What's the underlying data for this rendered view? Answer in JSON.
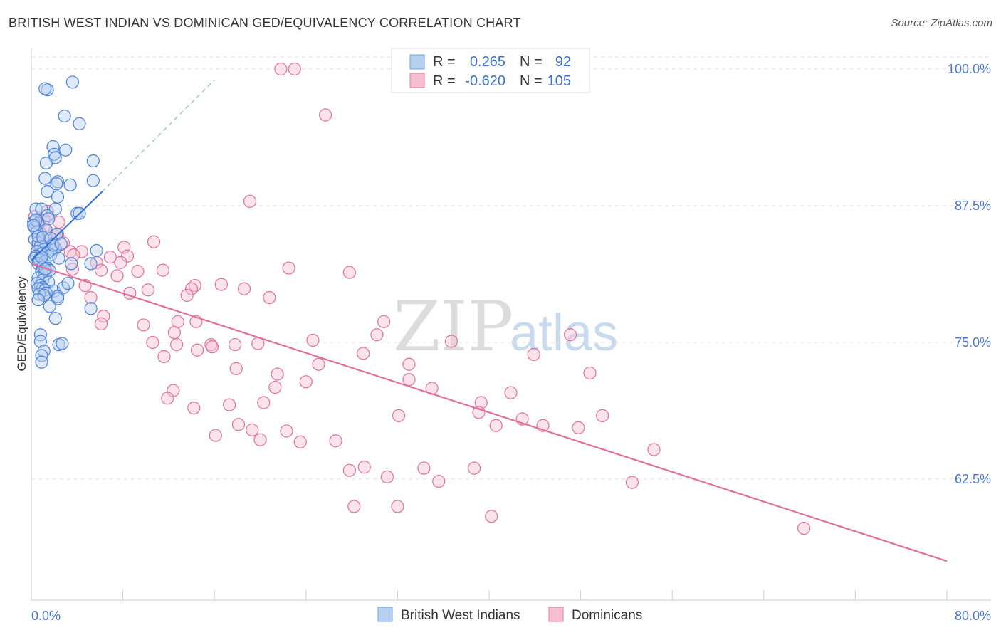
{
  "title": "BRITISH WEST INDIAN VS DOMINICAN GED/EQUIVALENCY CORRELATION CHART",
  "source": "Source: ZipAtlas.com",
  "watermark": {
    "zip": "ZIP",
    "atlas": "atlas"
  },
  "legend": {
    "r_label": "R =",
    "n_label": "N =",
    "series": [
      {
        "name": "British West Indians",
        "r": "0.265",
        "n": "92",
        "color": "#6fa3e0",
        "fill": "#b8d0f0"
      },
      {
        "name": "Dominicans",
        "r": "-0.620",
        "n": "105",
        "color": "#e879a0",
        "fill": "#f6c0d2"
      }
    ]
  },
  "chart_data": {
    "type": "scatter",
    "title": "BRITISH WEST INDIAN VS DOMINICAN GED/EQUIVALENCY CORRELATION CHART",
    "xlabel": "",
    "ylabel": "GED/Equivalency",
    "xlim": [
      0,
      80
    ],
    "ylim": [
      50,
      100
    ],
    "x_tick_labels": [
      "0.0%",
      "80.0%"
    ],
    "y_ticks": [
      62.5,
      75.0,
      87.5,
      100.0
    ],
    "y_tick_labels": [
      "62.5%",
      "75.0%",
      "87.5%",
      "100.0%"
    ],
    "grid": "horizontal dashed",
    "legend_position": "top-center",
    "series": [
      {
        "name": "British West Indians",
        "color": "#4a80d8",
        "trend": {
          "x": [
            0,
            6.2
          ],
          "y": [
            82.5,
            88.8
          ],
          "extended_to": [
            16,
            99
          ]
        },
        "points": [
          [
            1.4,
            98.1
          ],
          [
            1.2,
            98.2
          ],
          [
            3.6,
            98.8
          ],
          [
            2.9,
            95.7
          ],
          [
            4.2,
            95.0
          ],
          [
            1.9,
            92.9
          ],
          [
            3.0,
            92.6
          ],
          [
            2.0,
            92.2
          ],
          [
            2.1,
            91.9
          ],
          [
            1.3,
            91.4
          ],
          [
            5.4,
            91.6
          ],
          [
            1.2,
            90.0
          ],
          [
            2.3,
            89.7
          ],
          [
            2.2,
            89.5
          ],
          [
            3.4,
            89.4
          ],
          [
            5.4,
            89.8
          ],
          [
            1.4,
            88.8
          ],
          [
            2.3,
            88.3
          ],
          [
            0.4,
            87.2
          ],
          [
            0.9,
            87.2
          ],
          [
            2.1,
            87.2
          ],
          [
            1.4,
            86.6
          ],
          [
            1.5,
            86.3
          ],
          [
            4.0,
            86.8
          ],
          [
            4.2,
            86.8
          ],
          [
            0.2,
            86.0
          ],
          [
            0.6,
            85.9
          ],
          [
            0.3,
            85.5
          ],
          [
            1.3,
            85.3
          ],
          [
            0.5,
            85.1
          ],
          [
            2.2,
            84.9
          ],
          [
            0.3,
            84.4
          ],
          [
            0.6,
            84.1
          ],
          [
            1.5,
            84.0
          ],
          [
            0.8,
            83.8
          ],
          [
            1.1,
            83.5
          ],
          [
            1.8,
            83.5
          ],
          [
            2.1,
            83.6
          ],
          [
            0.5,
            83.3
          ],
          [
            1.4,
            83.2
          ],
          [
            0.9,
            83.1
          ],
          [
            1.7,
            83.0
          ],
          [
            5.7,
            83.4
          ],
          [
            0.4,
            82.9
          ],
          [
            0.3,
            82.7
          ],
          [
            0.7,
            82.6
          ],
          [
            1.2,
            82.4
          ],
          [
            2.4,
            82.7
          ],
          [
            0.6,
            82.2
          ],
          [
            3.5,
            82.2
          ],
          [
            5.2,
            82.2
          ],
          [
            1.0,
            81.9
          ],
          [
            1.4,
            81.8
          ],
          [
            1.6,
            81.6
          ],
          [
            0.9,
            81.5
          ],
          [
            1.2,
            81.2
          ],
          [
            0.6,
            80.9
          ],
          [
            1.0,
            80.7
          ],
          [
            1.5,
            80.5
          ],
          [
            0.5,
            80.4
          ],
          [
            0.8,
            80.2
          ],
          [
            1.0,
            80.0
          ],
          [
            0.6,
            79.9
          ],
          [
            1.2,
            79.8
          ],
          [
            2.0,
            79.7
          ],
          [
            2.8,
            80.0
          ],
          [
            3.2,
            80.4
          ],
          [
            1.3,
            79.5
          ],
          [
            0.7,
            79.4
          ],
          [
            1.1,
            79.3
          ],
          [
            2.3,
            79.2
          ],
          [
            2.3,
            79.0
          ],
          [
            0.6,
            78.9
          ],
          [
            1.6,
            78.3
          ],
          [
            5.2,
            78.1
          ],
          [
            2.1,
            77.2
          ],
          [
            0.8,
            75.7
          ],
          [
            0.8,
            75.1
          ],
          [
            2.4,
            74.8
          ],
          [
            2.7,
            74.9
          ],
          [
            1.1,
            74.2
          ],
          [
            0.9,
            73.8
          ],
          [
            0.9,
            73.2
          ],
          [
            0.6,
            84.7
          ],
          [
            1.0,
            84.6
          ],
          [
            1.7,
            84.5
          ],
          [
            1.9,
            83.9
          ],
          [
            0.4,
            86.2
          ],
          [
            0.2,
            85.7
          ],
          [
            2.6,
            84.0
          ],
          [
            0.9,
            82.8
          ],
          [
            1.2,
            81.7
          ]
        ]
      },
      {
        "name": "Dominicans",
        "color": "#e0709a",
        "trend": {
          "x": [
            0,
            80
          ],
          "y": [
            82.2,
            55.0
          ]
        },
        "points": [
          [
            21.8,
            100.0
          ],
          [
            23.0,
            100.0
          ],
          [
            25.7,
            95.8
          ],
          [
            19.1,
            87.9
          ],
          [
            1.4,
            87.0
          ],
          [
            0.3,
            86.5
          ],
          [
            1.1,
            86.2
          ],
          [
            2.4,
            86.0
          ],
          [
            0.7,
            85.9
          ],
          [
            1.1,
            85.6
          ],
          [
            0.7,
            85.1
          ],
          [
            2.0,
            84.8
          ],
          [
            2.3,
            84.9
          ],
          [
            2.8,
            84.1
          ],
          [
            10.7,
            84.2
          ],
          [
            0.6,
            83.8
          ],
          [
            8.1,
            83.7
          ],
          [
            3.4,
            83.3
          ],
          [
            4.4,
            83.3
          ],
          [
            3.7,
            83.0
          ],
          [
            6.9,
            82.8
          ],
          [
            8.4,
            82.9
          ],
          [
            0.4,
            82.9
          ],
          [
            5.7,
            82.3
          ],
          [
            7.8,
            82.3
          ],
          [
            6.1,
            81.6
          ],
          [
            9.3,
            81.5
          ],
          [
            11.5,
            81.6
          ],
          [
            22.5,
            81.8
          ],
          [
            27.8,
            81.4
          ],
          [
            7.5,
            81.1
          ],
          [
            3.6,
            81.7
          ],
          [
            14.3,
            80.2
          ],
          [
            16.6,
            80.3
          ],
          [
            4.7,
            80.2
          ],
          [
            14.0,
            79.9
          ],
          [
            18.6,
            79.9
          ],
          [
            10.2,
            79.8
          ],
          [
            5.2,
            79.1
          ],
          [
            8.6,
            79.5
          ],
          [
            13.6,
            79.3
          ],
          [
            20.8,
            79.1
          ],
          [
            6.3,
            77.4
          ],
          [
            6.1,
            76.7
          ],
          [
            9.8,
            76.6
          ],
          [
            12.8,
            76.9
          ],
          [
            14.4,
            76.9
          ],
          [
            30.8,
            76.9
          ],
          [
            12.5,
            75.9
          ],
          [
            30.2,
            75.7
          ],
          [
            47.1,
            75.7
          ],
          [
            24.6,
            75.2
          ],
          [
            36.7,
            75.1
          ],
          [
            10.6,
            75.0
          ],
          [
            12.7,
            74.8
          ],
          [
            15.7,
            74.8
          ],
          [
            17.8,
            74.8
          ],
          [
            19.8,
            74.9
          ],
          [
            14.5,
            74.3
          ],
          [
            15.8,
            74.6
          ],
          [
            29.0,
            74.0
          ],
          [
            11.6,
            73.7
          ],
          [
            43.9,
            73.9
          ],
          [
            25.1,
            73.0
          ],
          [
            33.0,
            73.0
          ],
          [
            17.9,
            72.6
          ],
          [
            48.8,
            72.2
          ],
          [
            21.5,
            72.1
          ],
          [
            33.0,
            71.6
          ],
          [
            24.0,
            71.4
          ],
          [
            35.0,
            70.8
          ],
          [
            21.3,
            70.9
          ],
          [
            12.4,
            70.6
          ],
          [
            11.9,
            69.9
          ],
          [
            41.9,
            70.4
          ],
          [
            14.2,
            69.0
          ],
          [
            17.3,
            69.3
          ],
          [
            20.3,
            69.5
          ],
          [
            39.3,
            69.5
          ],
          [
            39.1,
            68.6
          ],
          [
            32.1,
            68.3
          ],
          [
            49.9,
            68.3
          ],
          [
            42.9,
            68.0
          ],
          [
            18.1,
            67.5
          ],
          [
            40.6,
            67.4
          ],
          [
            44.7,
            67.4
          ],
          [
            47.8,
            67.2
          ],
          [
            19.3,
            67.0
          ],
          [
            22.3,
            66.9
          ],
          [
            16.1,
            66.5
          ],
          [
            20.0,
            66.1
          ],
          [
            26.6,
            66.0
          ],
          [
            23.5,
            65.9
          ],
          [
            54.4,
            65.2
          ],
          [
            29.1,
            63.6
          ],
          [
            38.7,
            63.5
          ],
          [
            27.8,
            63.3
          ],
          [
            34.3,
            63.5
          ],
          [
            31.1,
            62.7
          ],
          [
            35.6,
            62.3
          ],
          [
            52.5,
            62.2
          ],
          [
            28.2,
            60.0
          ],
          [
            32.0,
            60.0
          ],
          [
            40.2,
            59.1
          ],
          [
            67.5,
            58.0
          ]
        ]
      }
    ]
  }
}
